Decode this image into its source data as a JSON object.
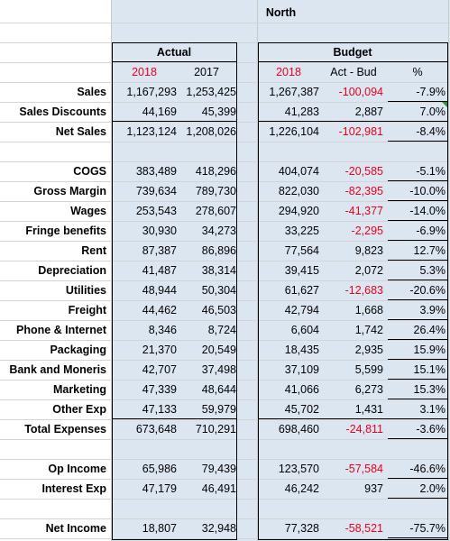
{
  "region": "North",
  "headers": {
    "actual": "Actual",
    "budget": "Budget",
    "year_2018": "2018",
    "year_2017": "2017",
    "budget_2018": "2018",
    "act_bud": "Act - Bud",
    "pct": "%"
  },
  "colors": {
    "fill": "#dce6f1",
    "negative": "#e8001c",
    "warning": "#1d9a3c"
  },
  "rows": [
    {
      "label": "Sales",
      "a18": "1,167,293",
      "a17": "1,253,425",
      "b18": "1,267,387",
      "diff": "-100,094",
      "pct": "-7.9%"
    },
    {
      "label": "Sales Discounts",
      "a18": "44,169",
      "a17": "45,399",
      "b18": "41,283",
      "diff": "2,887",
      "pct": "7.0%"
    },
    {
      "label": "Net Sales",
      "a18": "1,123,124",
      "a17": "1,208,026",
      "b18": "1,226,104",
      "diff": "-102,981",
      "pct": "-8.4%"
    },
    {
      "label": "COGS",
      "a18": "383,489",
      "a17": "418,296",
      "b18": "404,074",
      "diff": "-20,585",
      "pct": "-5.1%"
    },
    {
      "label": "Gross Margin",
      "a18": "739,634",
      "a17": "789,730",
      "b18": "822,030",
      "diff": "-82,395",
      "pct": "-10.0%"
    },
    {
      "label": "Wages",
      "a18": "253,543",
      "a17": "278,607",
      "b18": "294,920",
      "diff": "-41,377",
      "pct": "-14.0%"
    },
    {
      "label": "Fringe benefits",
      "a18": "30,930",
      "a17": "34,273",
      "b18": "33,225",
      "diff": "-2,295",
      "pct": "-6.9%"
    },
    {
      "label": "Rent",
      "a18": "87,387",
      "a17": "86,896",
      "b18": "77,564",
      "diff": "9,823",
      "pct": "12.7%"
    },
    {
      "label": "Depreciation",
      "a18": "41,487",
      "a17": "38,314",
      "b18": "39,415",
      "diff": "2,072",
      "pct": "5.3%"
    },
    {
      "label": "Utilities",
      "a18": "48,944",
      "a17": "50,304",
      "b18": "61,627",
      "diff": "-12,683",
      "pct": "-20.6%"
    },
    {
      "label": "Freight",
      "a18": "44,462",
      "a17": "46,503",
      "b18": "42,794",
      "diff": "1,668",
      "pct": "3.9%"
    },
    {
      "label": "Phone & Internet",
      "a18": "8,346",
      "a17": "8,724",
      "b18": "6,604",
      "diff": "1,742",
      "pct": "26.4%"
    },
    {
      "label": "Packaging",
      "a18": "21,370",
      "a17": "20,549",
      "b18": "18,435",
      "diff": "2,935",
      "pct": "15.9%"
    },
    {
      "label": "Bank and Moneris",
      "a18": "42,707",
      "a17": "37,498",
      "b18": "37,109",
      "diff": "5,599",
      "pct": "15.1%"
    },
    {
      "label": "Marketing",
      "a18": "47,339",
      "a17": "48,644",
      "b18": "41,066",
      "diff": "6,273",
      "pct": "15.3%"
    },
    {
      "label": "Other Exp",
      "a18": "47,133",
      "a17": "59,979",
      "b18": "45,702",
      "diff": "1,431",
      "pct": "3.1%"
    },
    {
      "label": "Total Expenses",
      "a18": "673,648",
      "a17": "710,291",
      "b18": "698,460",
      "diff": "-24,811",
      "pct": "-3.6%"
    },
    {
      "label": "Op Income",
      "a18": "65,986",
      "a17": "79,439",
      "b18": "123,570",
      "diff": "-57,584",
      "pct": "-46.6%"
    },
    {
      "label": "Interest Exp",
      "a18": "47,179",
      "a17": "46,491",
      "b18": "46,242",
      "diff": "937",
      "pct": "2.0%"
    },
    {
      "label": "Net Income",
      "a18": "18,807",
      "a17": "32,948",
      "b18": "77,328",
      "diff": "-58,521",
      "pct": "-75.7%"
    }
  ]
}
